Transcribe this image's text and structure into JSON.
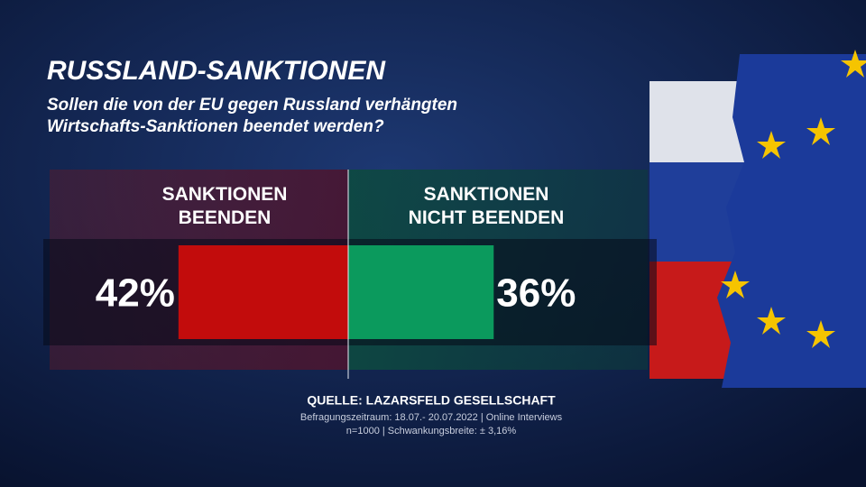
{
  "chart_data": {
    "type": "diverging-bar",
    "title": "RUSSLAND-SANKTIONEN",
    "subtitle": [
      "Sollen die von der EU gegen Russland verhängten",
      "Wirtschafts-Sanktionen beendet werden?"
    ],
    "categories": [
      "SANKTIONEN BEENDEN",
      "SANKTIONEN NICHT BEENDEN"
    ],
    "values": [
      42,
      36
    ],
    "value_labels": [
      "42%",
      "36%"
    ],
    "colors": [
      "#c20c0c",
      "#0b9a5d"
    ],
    "source": "QUELLE:  LAZARSFELD GESELLSCHAFT",
    "notes": [
      "Befragungszeitraum: 18.07.- 20.07.2022 | Online Interviews",
      "n=1000 |  Schwankungsbreite: ± 3,16%"
    ]
  }
}
